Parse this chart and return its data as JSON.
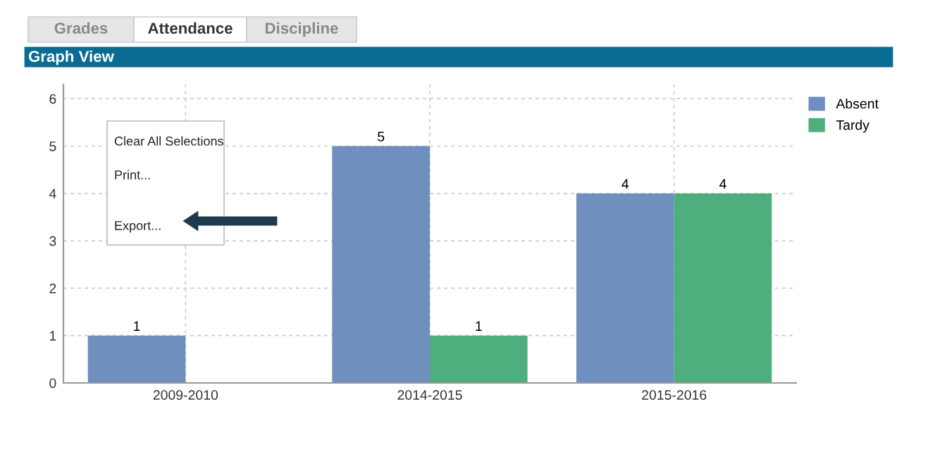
{
  "chart_data": {
    "type": "bar",
    "title": "Graph View",
    "categories": [
      "2009-2010",
      "2014-2015",
      "2015-2016"
    ],
    "series": [
      {
        "name": "Absent",
        "color": "#6f8fbf",
        "values": [
          1,
          5,
          4
        ]
      },
      {
        "name": "Tardy",
        "color": "#4fae7e",
        "values": [
          null,
          1,
          4
        ]
      }
    ],
    "ylim": [
      0,
      6.3
    ],
    "yticks": [
      0,
      1,
      2,
      3,
      4,
      5,
      6
    ],
    "grid": true,
    "legend": "top right",
    "data_labels": true,
    "annotations": [
      "Grades",
      "Attendance",
      "Discipline",
      "Clear All Selections",
      "Print...",
      "Export..."
    ]
  }
}
